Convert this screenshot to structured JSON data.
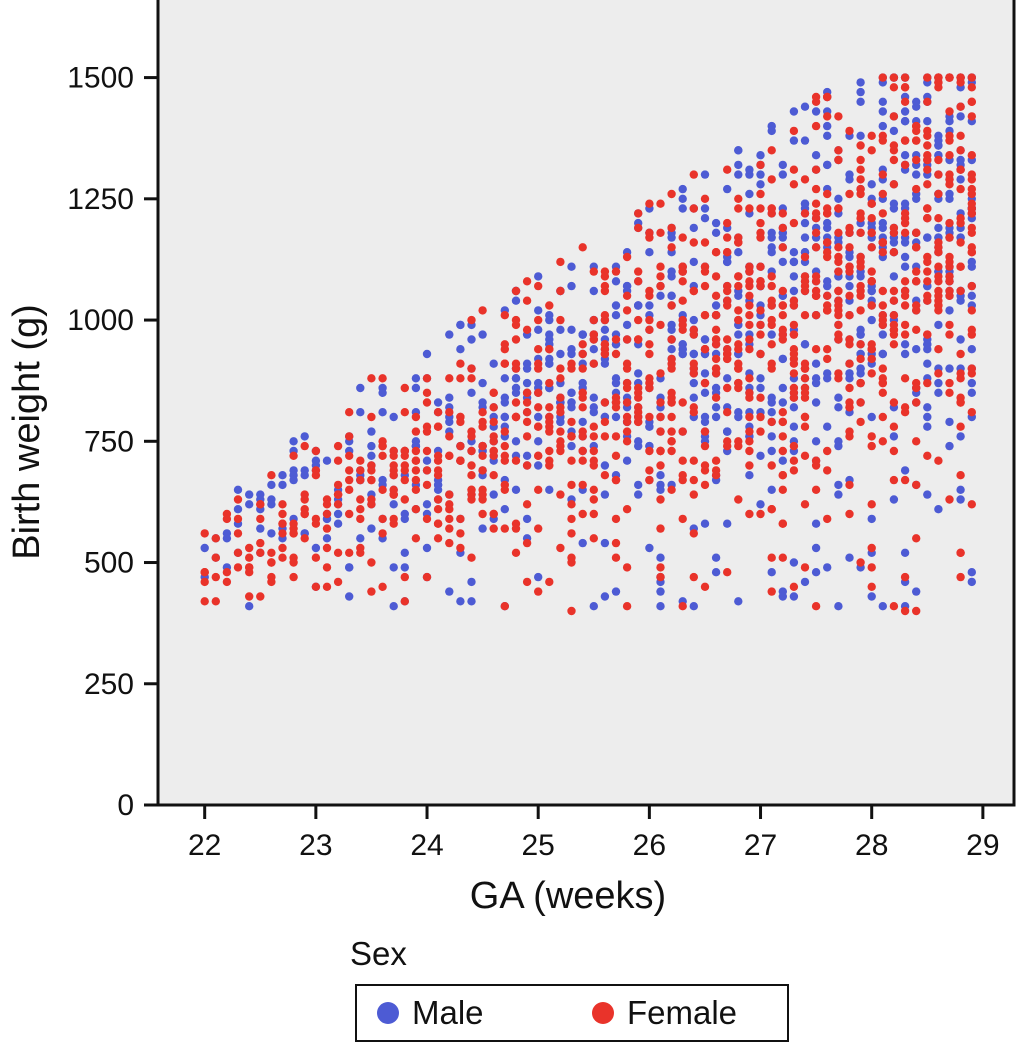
{
  "chart_data": {
    "type": "scatter",
    "title": "",
    "xlabel": "GA (weeks)",
    "ylabel": "Birth weight (g)",
    "xlim": [
      21.58,
      29.28
    ],
    "ylim": [
      0,
      1660
    ],
    "xticks": [
      22,
      23,
      24,
      25,
      26,
      27,
      28,
      29
    ],
    "yticks": [
      0,
      250,
      500,
      750,
      1000,
      1250,
      1500
    ],
    "grid": false,
    "plot_bg": "#ededed",
    "axis_color": "#111111",
    "legend": {
      "title": "Sex",
      "position": "bottom",
      "entries": [
        {
          "label": "Male",
          "color": "#4d5bd4"
        },
        {
          "label": "Female",
          "color": "#e9332a"
        }
      ]
    },
    "series": [
      {
        "name": "Male",
        "color": "#4d5bd4"
      },
      {
        "name": "Female",
        "color": "#e9332a"
      }
    ],
    "point_generator": {
      "seed": 1337,
      "ga_start": 22.0,
      "ga_end": 28.9,
      "ga_step": 0.1,
      "count_base": 2.5,
      "count_slope": 3.1,
      "count_jitter": 2.5,
      "count_offset": {
        "Male": 0,
        "Female": 2
      },
      "center_base": 520,
      "center_slope": 95,
      "center_offset": {
        "Male": 30,
        "Female": -10
      },
      "sd_base": 55,
      "sd_slope": 28,
      "weight_min": 400,
      "max_base": 660,
      "max_slope": 145,
      "weight_cap": 1505,
      "outlier_prob": 0.035,
      "outlier_min": 398,
      "outlier_range": 120,
      "quantize_g": 10,
      "dot_radius": 4.2
    }
  }
}
